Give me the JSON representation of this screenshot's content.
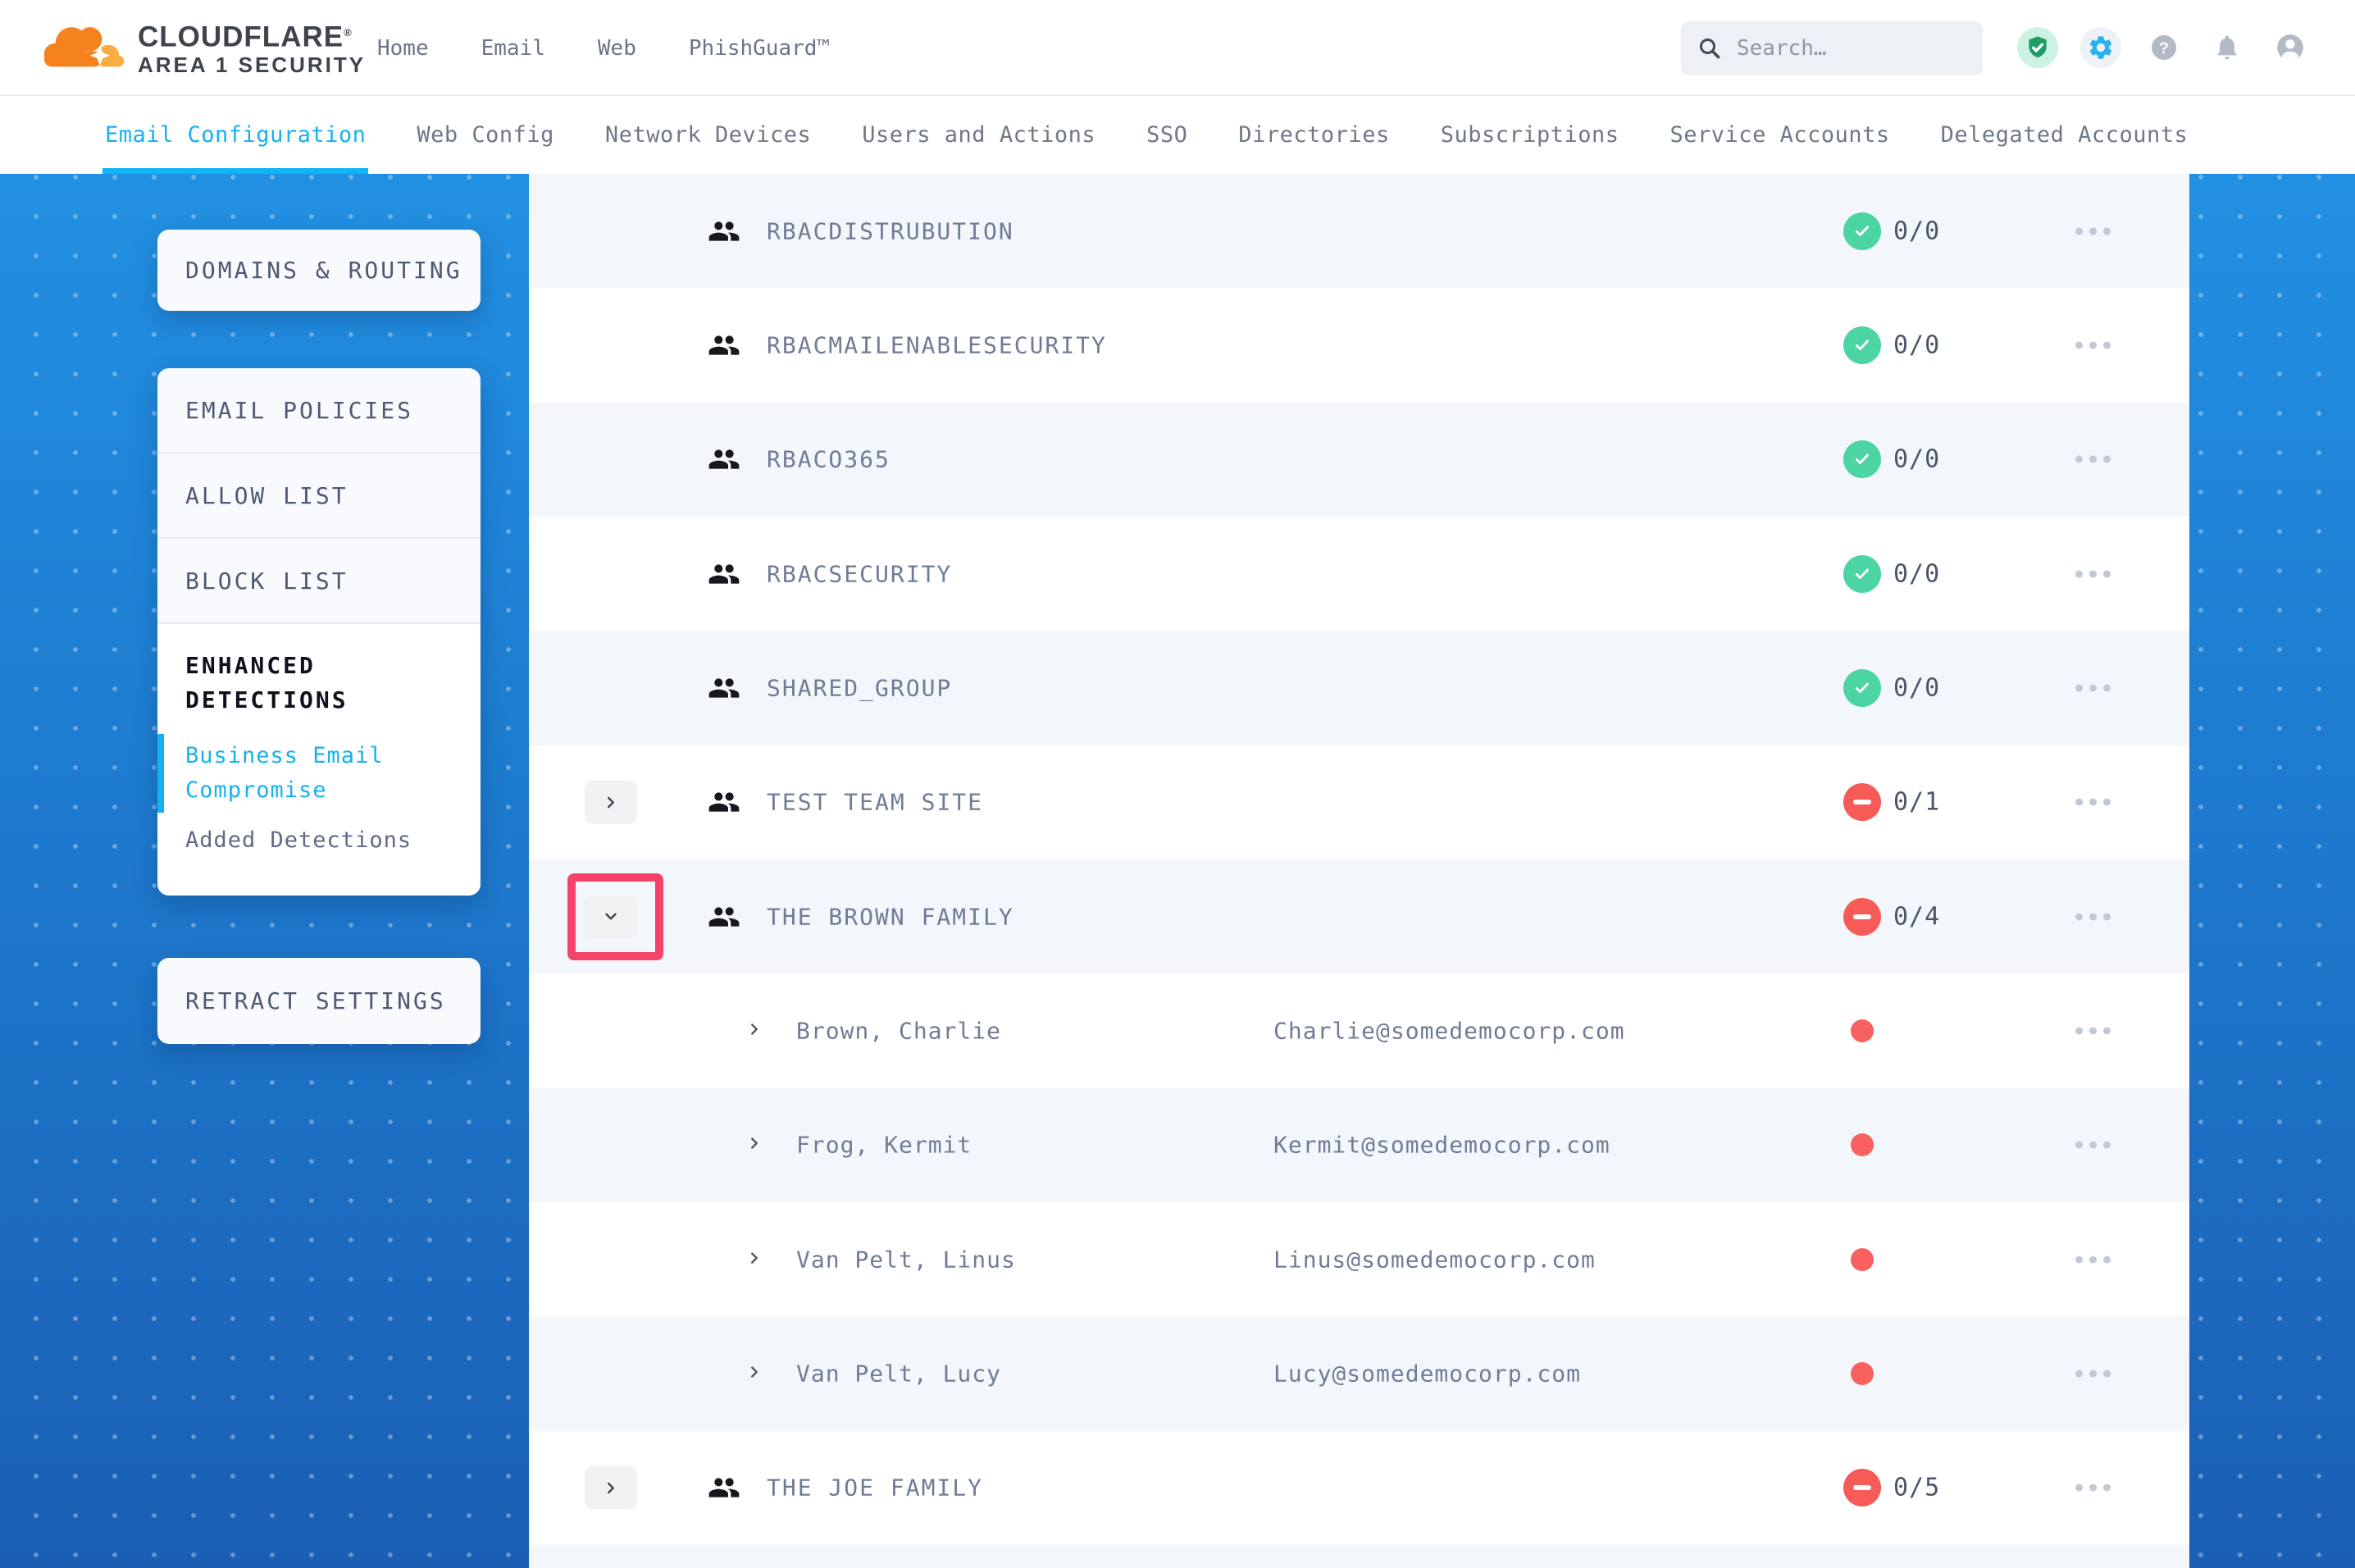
{
  "header": {
    "logo_brand": "CLOUDFLARE",
    "logo_reg": "®",
    "logo_sub": "AREA 1 SECURITY",
    "nav": [
      "Home",
      "Email",
      "Web",
      "PhishGuard™"
    ],
    "search_placeholder": "Search…"
  },
  "tabs": [
    {
      "label": "Email Configuration",
      "active": true
    },
    {
      "label": "Web Config",
      "active": false
    },
    {
      "label": "Network Devices",
      "active": false
    },
    {
      "label": "Users and Actions",
      "active": false
    },
    {
      "label": "SSO",
      "active": false
    },
    {
      "label": "Directories",
      "active": false
    },
    {
      "label": "Subscriptions",
      "active": false
    },
    {
      "label": "Service Accounts",
      "active": false
    },
    {
      "label": "Delegated Accounts",
      "active": false
    }
  ],
  "sidebar": {
    "domains_routing": "DOMAINS & ROUTING",
    "email_policies": "EMAIL POLICIES",
    "allow_list": "ALLOW LIST",
    "block_list": "BLOCK LIST",
    "enhanced_detections": "ENHANCED DETECTIONS",
    "business_email_compromise": "Business Email Compromise",
    "added_detections": "Added Detections",
    "retract_settings": "RETRACT SETTINGS"
  },
  "table": {
    "rows": [
      {
        "type": "group",
        "name": "RBACDISTRUBUTION",
        "status": "ok",
        "count": "0/0",
        "expand": null,
        "annotated": false
      },
      {
        "type": "group",
        "name": "RBACMAILENABLESECURITY",
        "status": "ok",
        "count": "0/0",
        "expand": null,
        "annotated": false
      },
      {
        "type": "group",
        "name": "RBACO365",
        "status": "ok",
        "count": "0/0",
        "expand": null,
        "annotated": false
      },
      {
        "type": "group",
        "name": "RBACSECURITY",
        "status": "ok",
        "count": "0/0",
        "expand": null,
        "annotated": false
      },
      {
        "type": "group",
        "name": "SHARED_GROUP",
        "status": "ok",
        "count": "0/0",
        "expand": null,
        "annotated": false
      },
      {
        "type": "group",
        "name": "TEST TEAM SITE",
        "status": "blocked",
        "count": "0/1",
        "expand": "collapsed",
        "annotated": false
      },
      {
        "type": "group",
        "name": "THE BROWN FAMILY",
        "status": "blocked",
        "count": "0/4",
        "expand": "expanded",
        "annotated": true
      },
      {
        "type": "member",
        "name": "Brown, Charlie",
        "email": "Charlie@somedemocorp.com",
        "status": "dot"
      },
      {
        "type": "member",
        "name": "Frog, Kermit",
        "email": "Kermit@somedemocorp.com",
        "status": "dot"
      },
      {
        "type": "member",
        "name": "Van Pelt, Linus",
        "email": "Linus@somedemocorp.com",
        "status": "dot"
      },
      {
        "type": "member",
        "name": "Van Pelt, Lucy",
        "email": "Lucy@somedemocorp.com",
        "status": "dot"
      },
      {
        "type": "group",
        "name": "THE JOE FAMILY",
        "status": "blocked",
        "count": "0/5",
        "expand": "collapsed",
        "annotated": false
      },
      {
        "type": "spacer"
      }
    ]
  },
  "colors": {
    "accent": "#14b2ef",
    "underline": "#12b5f4",
    "annot": "#f4426b",
    "green": "#4cd4a2",
    "red": "#f65b57",
    "dotred": "#f8615e",
    "brand_orange": "#f6821f",
    "brand_orange_light": "#fbad41",
    "bgtop": "#2290e2",
    "bgbot": "#1a5fb4"
  }
}
